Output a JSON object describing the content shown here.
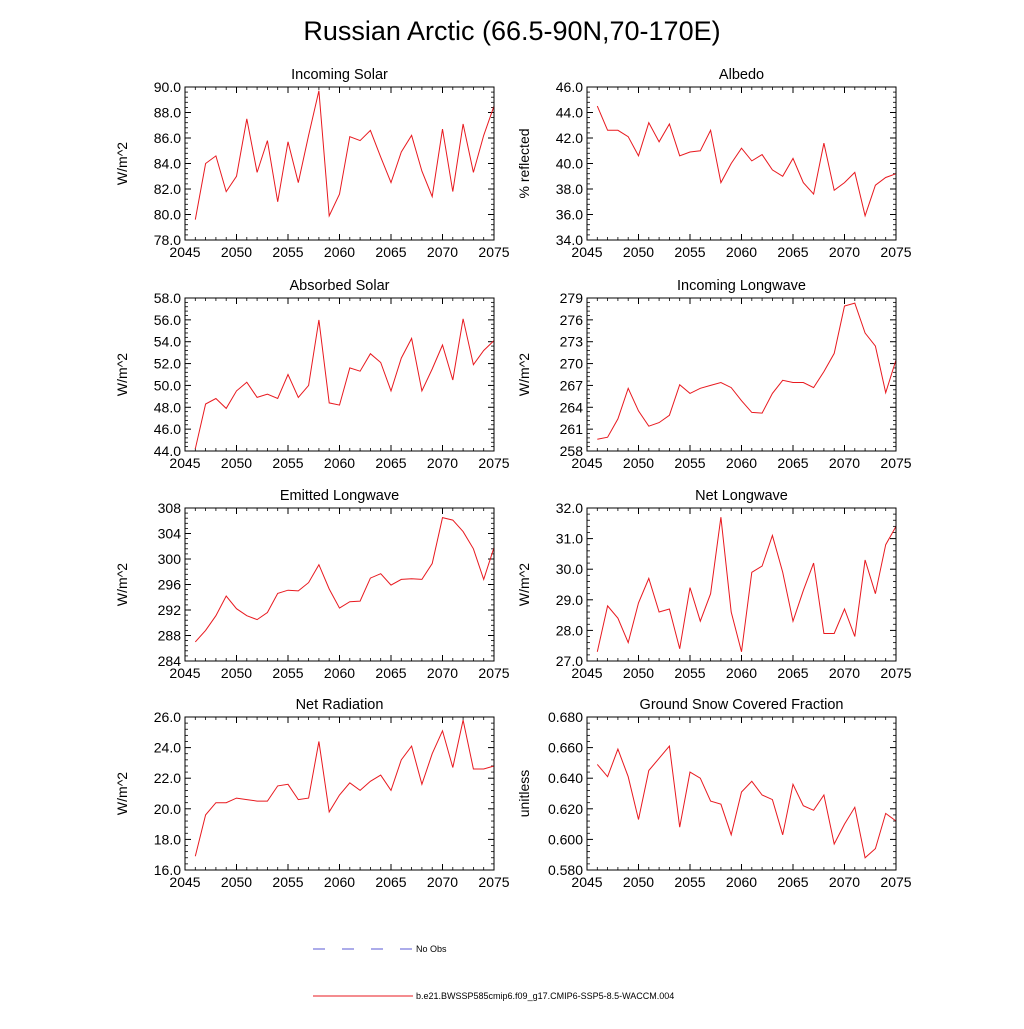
{
  "title": "Russian Arctic (66.5-90N,70-170E)",
  "legend": [
    {
      "label": "No Obs",
      "color": "#5a5ad6",
      "dashed": true
    },
    {
      "label": "b.e21.BWSSP585cmip6.f09_g17.CMIP6-SSP5-8.5-WACCM.004",
      "color": "#e8191f",
      "dashed": false
    }
  ],
  "chart_data": [
    {
      "type": "line",
      "title": "Incoming Solar",
      "xlabel": "",
      "ylabel": "W/m^2",
      "xlim": [
        2045,
        2075
      ],
      "ylim": [
        78,
        90
      ],
      "xticks": [
        2045,
        2050,
        2055,
        2060,
        2065,
        2070,
        2075
      ],
      "xtick_labels": [
        "2045",
        "2050",
        "2055",
        "2060",
        "2065",
        "2070",
        "2075"
      ],
      "yticks": [
        78,
        80,
        82,
        84,
        86,
        88,
        90
      ],
      "ytick_labels": [
        "78.0",
        "80.0",
        "82.0",
        "84.0",
        "86.0",
        "88.0",
        "90.0"
      ],
      "x": [
        2046,
        2047,
        2048,
        2049,
        2050,
        2051,
        2052,
        2053,
        2054,
        2055,
        2056,
        2057,
        2058,
        2059,
        2060,
        2061,
        2062,
        2063,
        2064,
        2065,
        2066,
        2067,
        2068,
        2069,
        2070,
        2071,
        2072,
        2073,
        2074,
        2075
      ],
      "series": [
        {
          "name": "b.e21.BWSSP585cmip6.f09_g17.CMIP6-SSP5-8.5-WACCM.004",
          "values": [
            79.6,
            84.0,
            84.6,
            81.8,
            83.0,
            87.5,
            83.3,
            85.8,
            81.0,
            85.7,
            82.5,
            86.2,
            89.7,
            79.9,
            81.6,
            86.1,
            85.8,
            86.6,
            84.5,
            82.5,
            84.9,
            86.2,
            83.4,
            81.4,
            86.7,
            81.8,
            87.1,
            83.3,
            86.2,
            88.5
          ]
        }
      ]
    },
    {
      "type": "line",
      "title": "Albedo",
      "xlabel": "",
      "ylabel": "% reflected",
      "xlim": [
        2045,
        2075
      ],
      "ylim": [
        34,
        46
      ],
      "xticks": [
        2045,
        2050,
        2055,
        2060,
        2065,
        2070,
        2075
      ],
      "xtick_labels": [
        "2045",
        "2050",
        "2055",
        "2060",
        "2065",
        "2070",
        "2075"
      ],
      "yticks": [
        34,
        36,
        38,
        40,
        42,
        44,
        46
      ],
      "ytick_labels": [
        "34.0",
        "36.0",
        "38.0",
        "40.0",
        "42.0",
        "44.0",
        "46.0"
      ],
      "x": [
        2046,
        2047,
        2048,
        2049,
        2050,
        2051,
        2052,
        2053,
        2054,
        2055,
        2056,
        2057,
        2058,
        2059,
        2060,
        2061,
        2062,
        2063,
        2064,
        2065,
        2066,
        2067,
        2068,
        2069,
        2070,
        2071,
        2072,
        2073,
        2074,
        2075
      ],
      "series": [
        {
          "name": "b.e21.BWSSP585cmip6.f09_g17.CMIP6-SSP5-8.5-WACCM.004",
          "values": [
            44.5,
            42.6,
            42.6,
            42.1,
            40.6,
            43.2,
            41.7,
            43.1,
            40.6,
            40.9,
            41.0,
            42.6,
            38.5,
            40.0,
            41.2,
            40.2,
            40.7,
            39.5,
            39.0,
            40.4,
            38.5,
            37.6,
            41.6,
            37.9,
            38.5,
            39.3,
            35.9,
            38.3,
            38.9,
            39.2
          ]
        }
      ]
    },
    {
      "type": "line",
      "title": "Absorbed Solar",
      "xlabel": "",
      "ylabel": "W/m^2",
      "xlim": [
        2045,
        2075
      ],
      "ylim": [
        44,
        58
      ],
      "xticks": [
        2045,
        2050,
        2055,
        2060,
        2065,
        2070,
        2075
      ],
      "xtick_labels": [
        "2045",
        "2050",
        "2055",
        "2060",
        "2065",
        "2070",
        "2075"
      ],
      "yticks": [
        44,
        46,
        48,
        50,
        52,
        54,
        56,
        58
      ],
      "ytick_labels": [
        "44.0",
        "46.0",
        "48.0",
        "50.0",
        "52.0",
        "54.0",
        "56.0",
        "58.0"
      ],
      "x": [
        2046,
        2047,
        2048,
        2049,
        2050,
        2051,
        2052,
        2053,
        2054,
        2055,
        2056,
        2057,
        2058,
        2059,
        2060,
        2061,
        2062,
        2063,
        2064,
        2065,
        2066,
        2067,
        2068,
        2069,
        2070,
        2071,
        2072,
        2073,
        2074,
        2075
      ],
      "series": [
        {
          "name": "b.e21.BWSSP585cmip6.f09_g17.CMIP6-SSP5-8.5-WACCM.004",
          "values": [
            44.2,
            48.3,
            48.8,
            47.9,
            49.5,
            50.3,
            48.9,
            49.2,
            48.8,
            51.0,
            48.9,
            50.0,
            56.0,
            48.4,
            48.2,
            51.6,
            51.3,
            52.9,
            52.1,
            49.5,
            52.5,
            54.3,
            49.5,
            51.5,
            53.7,
            50.5,
            56.1,
            51.9,
            53.2,
            54.1
          ]
        }
      ]
    },
    {
      "type": "line",
      "title": "Incoming Longwave",
      "xlabel": "",
      "ylabel": "W/m^2",
      "xlim": [
        2045,
        2075
      ],
      "ylim": [
        258,
        279
      ],
      "xticks": [
        2045,
        2050,
        2055,
        2060,
        2065,
        2070,
        2075
      ],
      "xtick_labels": [
        "2045",
        "2050",
        "2055",
        "2060",
        "2065",
        "2070",
        "2075"
      ],
      "yticks": [
        258,
        261,
        264,
        267,
        270,
        273,
        276,
        279
      ],
      "ytick_labels": [
        "258",
        "261",
        "264",
        "267",
        "270",
        "273",
        "276",
        "279"
      ],
      "x": [
        2046,
        2047,
        2048,
        2049,
        2050,
        2051,
        2052,
        2053,
        2054,
        2055,
        2056,
        2057,
        2058,
        2059,
        2060,
        2061,
        2062,
        2063,
        2064,
        2065,
        2066,
        2067,
        2068,
        2069,
        2070,
        2071,
        2072,
        2073,
        2074,
        2075
      ],
      "series": [
        {
          "name": "b.e21.BWSSP585cmip6.f09_g17.CMIP6-SSP5-8.5-WACCM.004",
          "values": [
            259.6,
            259.9,
            262.4,
            266.6,
            263.5,
            261.4,
            261.9,
            262.9,
            267.1,
            265.9,
            266.6,
            267.0,
            267.4,
            266.7,
            264.9,
            263.3,
            263.2,
            265.9,
            267.7,
            267.4,
            267.4,
            266.7,
            268.9,
            271.4,
            277.9,
            278.3,
            274.2,
            272.4,
            266.0,
            270.5
          ]
        }
      ]
    },
    {
      "type": "line",
      "title": "Emitted Longwave",
      "xlabel": "",
      "ylabel": "W/m^2",
      "xlim": [
        2045,
        2075
      ],
      "ylim": [
        284,
        308
      ],
      "xticks": [
        2045,
        2050,
        2055,
        2060,
        2065,
        2070,
        2075
      ],
      "xtick_labels": [
        "2045",
        "2050",
        "2055",
        "2060",
        "2065",
        "2070",
        "2075"
      ],
      "yticks": [
        284,
        288,
        292,
        296,
        300,
        304,
        308
      ],
      "ytick_labels": [
        "284",
        "288",
        "292",
        "296",
        "300",
        "304",
        "308"
      ],
      "x": [
        2046,
        2047,
        2048,
        2049,
        2050,
        2051,
        2052,
        2053,
        2054,
        2055,
        2056,
        2057,
        2058,
        2059,
        2060,
        2061,
        2062,
        2063,
        2064,
        2065,
        2066,
        2067,
        2068,
        2069,
        2070,
        2071,
        2072,
        2073,
        2074,
        2075
      ],
      "series": [
        {
          "name": "b.e21.BWSSP585cmip6.f09_g17.CMIP6-SSP5-8.5-WACCM.004",
          "values": [
            287.0,
            288.8,
            291.1,
            294.2,
            292.2,
            291.1,
            290.5,
            291.6,
            294.6,
            295.1,
            295.0,
            296.3,
            299.1,
            295.3,
            292.3,
            293.3,
            293.4,
            297.0,
            297.7,
            295.9,
            296.8,
            296.9,
            296.8,
            299.3,
            306.5,
            306.1,
            304.3,
            301.6,
            296.8,
            301.8
          ]
        }
      ]
    },
    {
      "type": "line",
      "title": "Net Longwave",
      "xlabel": "",
      "ylabel": "W/m^2",
      "xlim": [
        2045,
        2075
      ],
      "ylim": [
        27,
        32
      ],
      "xticks": [
        2045,
        2050,
        2055,
        2060,
        2065,
        2070,
        2075
      ],
      "xtick_labels": [
        "2045",
        "2050",
        "2055",
        "2060",
        "2065",
        "2070",
        "2075"
      ],
      "yticks": [
        27,
        28,
        29,
        30,
        31,
        32
      ],
      "ytick_labels": [
        "27.0",
        "28.0",
        "29.0",
        "30.0",
        "31.0",
        "32.0"
      ],
      "x": [
        2046,
        2047,
        2048,
        2049,
        2050,
        2051,
        2052,
        2053,
        2054,
        2055,
        2056,
        2057,
        2058,
        2059,
        2060,
        2061,
        2062,
        2063,
        2064,
        2065,
        2066,
        2067,
        2068,
        2069,
        2070,
        2071,
        2072,
        2073,
        2074,
        2075
      ],
      "series": [
        {
          "name": "b.e21.BWSSP585cmip6.f09_g17.CMIP6-SSP5-8.5-WACCM.004",
          "values": [
            27.3,
            28.8,
            28.4,
            27.6,
            28.9,
            29.7,
            28.6,
            28.7,
            27.4,
            29.4,
            28.3,
            29.2,
            31.7,
            28.6,
            27.3,
            29.9,
            30.1,
            31.1,
            29.9,
            28.3,
            29.3,
            30.2,
            27.9,
            27.9,
            28.7,
            27.8,
            30.3,
            29.2,
            30.8,
            31.4
          ]
        }
      ]
    },
    {
      "type": "line",
      "title": "Net Radiation",
      "xlabel": "",
      "ylabel": "W/m^2",
      "xlim": [
        2045,
        2075
      ],
      "ylim": [
        16,
        26
      ],
      "xticks": [
        2045,
        2050,
        2055,
        2060,
        2065,
        2070,
        2075
      ],
      "xtick_labels": [
        "2045",
        "2050",
        "2055",
        "2060",
        "2065",
        "2070",
        "2075"
      ],
      "yticks": [
        16,
        18,
        20,
        22,
        24,
        26
      ],
      "ytick_labels": [
        "16.0",
        "18.0",
        "20.0",
        "22.0",
        "24.0",
        "26.0"
      ],
      "x": [
        2046,
        2047,
        2048,
        2049,
        2050,
        2051,
        2052,
        2053,
        2054,
        2055,
        2056,
        2057,
        2058,
        2059,
        2060,
        2061,
        2062,
        2063,
        2064,
        2065,
        2066,
        2067,
        2068,
        2069,
        2070,
        2071,
        2072,
        2073,
        2074,
        2075
      ],
      "series": [
        {
          "name": "b.e21.BWSSP585cmip6.f09_g17.CMIP6-SSP5-8.5-WACCM.004",
          "values": [
            16.9,
            19.6,
            20.4,
            20.4,
            20.7,
            20.6,
            20.5,
            20.5,
            21.5,
            21.6,
            20.6,
            20.7,
            24.4,
            19.8,
            20.9,
            21.7,
            21.2,
            21.8,
            22.2,
            21.2,
            23.2,
            24.1,
            21.6,
            23.6,
            25.1,
            22.7,
            25.8,
            22.6,
            22.6,
            22.8
          ]
        }
      ]
    },
    {
      "type": "line",
      "title": "Ground Snow Covered Fraction",
      "xlabel": "",
      "ylabel": "unitless",
      "xlim": [
        2045,
        2075
      ],
      "ylim": [
        0.58,
        0.68
      ],
      "xticks": [
        2045,
        2050,
        2055,
        2060,
        2065,
        2070,
        2075
      ],
      "xtick_labels": [
        "2045",
        "2050",
        "2055",
        "2060",
        "2065",
        "2070",
        "2075"
      ],
      "yticks": [
        0.58,
        0.6,
        0.62,
        0.64,
        0.66,
        0.68
      ],
      "ytick_labels": [
        "0.580",
        "0.600",
        "0.620",
        "0.640",
        "0.660",
        "0.680"
      ],
      "x": [
        2046,
        2047,
        2048,
        2049,
        2050,
        2051,
        2052,
        2053,
        2054,
        2055,
        2056,
        2057,
        2058,
        2059,
        2060,
        2061,
        2062,
        2063,
        2064,
        2065,
        2066,
        2067,
        2068,
        2069,
        2070,
        2071,
        2072,
        2073,
        2074,
        2075
      ],
      "series": [
        {
          "name": "b.e21.BWSSP585cmip6.f09_g17.CMIP6-SSP5-8.5-WACCM.004",
          "values": [
            0.649,
            0.641,
            0.659,
            0.641,
            0.613,
            0.645,
            0.653,
            0.661,
            0.608,
            0.644,
            0.64,
            0.625,
            0.623,
            0.603,
            0.631,
            0.638,
            0.629,
            0.626,
            0.603,
            0.636,
            0.622,
            0.619,
            0.629,
            0.597,
            0.61,
            0.621,
            0.588,
            0.594,
            0.617,
            0.612
          ]
        }
      ]
    }
  ]
}
